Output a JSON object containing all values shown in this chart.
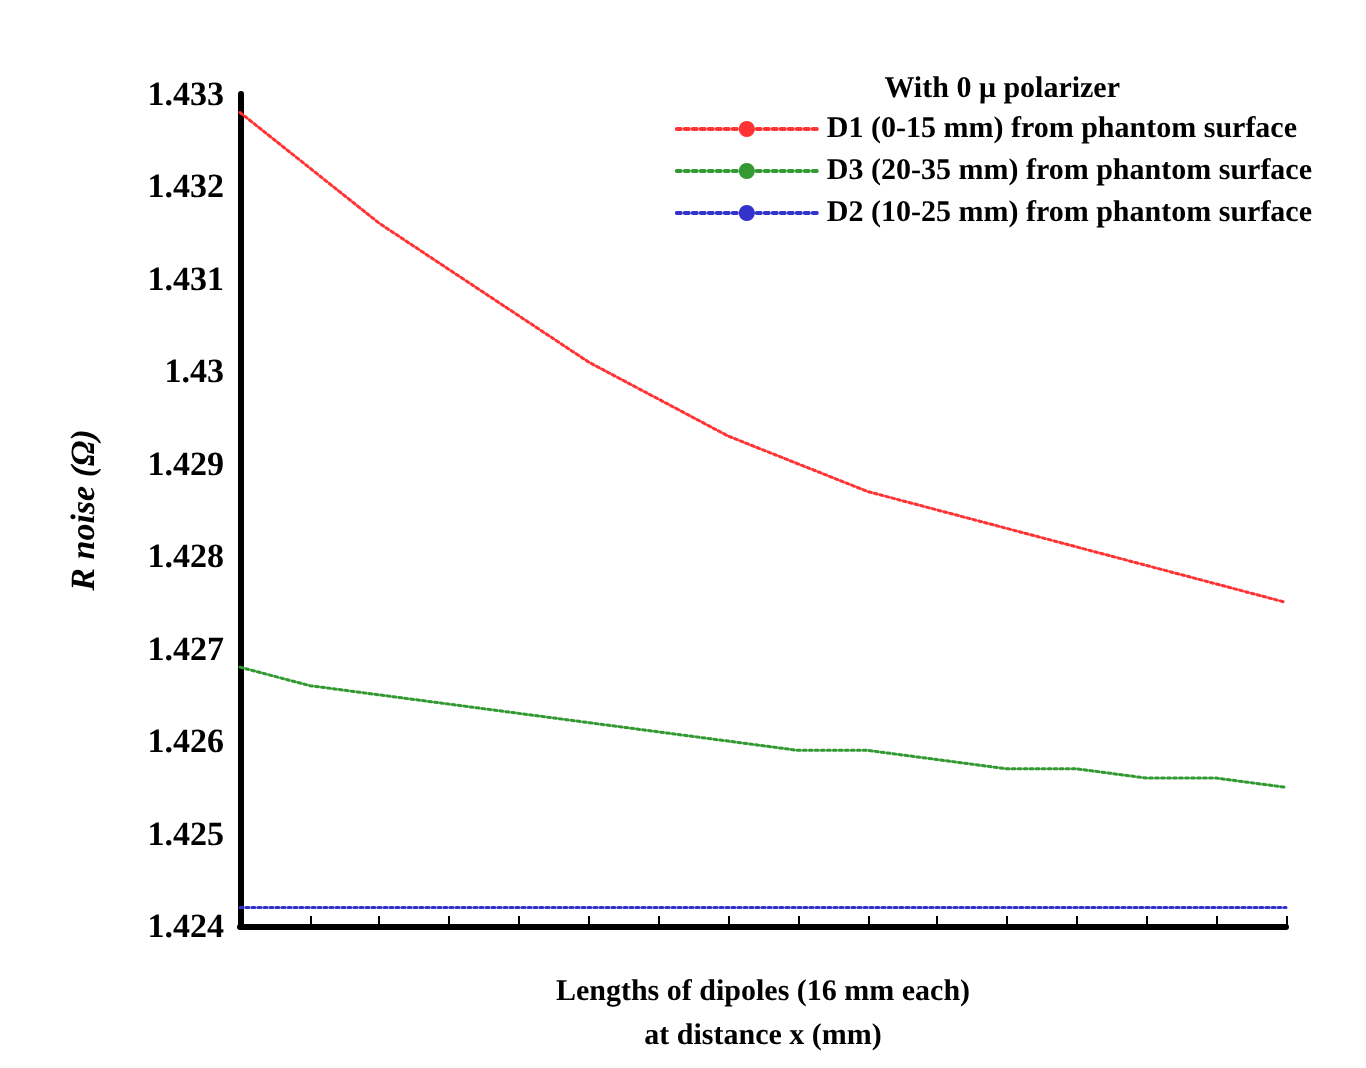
{
  "chart_data": {
    "type": "line",
    "legend_title": "With 0 μ polarizer",
    "xlabel": "Lengths of dipoles (16 mm each)\nat distance x (mm)",
    "ylabel": "R noise (Ω)",
    "categories": [
      null,
      null,
      null,
      null,
      null,
      null,
      null,
      null,
      null,
      null,
      null,
      null,
      null,
      null,
      null,
      null
    ],
    "series": [
      {
        "name": "D1 (0-15 mm) from phantom surface",
        "color": "#ff3333",
        "values": [
          1.4328,
          1.4322,
          1.4316,
          1.4311,
          1.4306,
          1.4301,
          1.4297,
          1.4293,
          1.429,
          1.4287,
          1.4285,
          1.4283,
          1.4281,
          1.4279,
          1.4277,
          1.4275
        ]
      },
      {
        "name": "D3 (20-35 mm) from phantom surface",
        "color": "#339933",
        "values": [
          1.4268,
          1.4266,
          1.4265,
          1.4264,
          1.4263,
          1.4262,
          1.4261,
          1.426,
          1.4259,
          1.4259,
          1.4258,
          1.4257,
          1.4257,
          1.4256,
          1.4256,
          1.4255
        ]
      },
      {
        "name": "D2 (10-25 mm) from phantom surface",
        "color": "#3333cc",
        "values": [
          1.4242,
          1.4242,
          1.4242,
          1.4242,
          1.4242,
          1.4242,
          1.4242,
          1.4242,
          1.4242,
          1.4242,
          1.4242,
          1.4242,
          1.4242,
          1.4242,
          1.4242,
          1.4242
        ]
      }
    ],
    "ylim": [
      1.424,
      1.433
    ],
    "yticks": [
      1.424,
      1.425,
      1.426,
      1.427,
      1.428,
      1.429,
      1.43,
      1.431,
      1.432,
      1.433
    ],
    "grid": false,
    "legend": "top right",
    "marker": "none",
    "line_style": "dotted"
  }
}
